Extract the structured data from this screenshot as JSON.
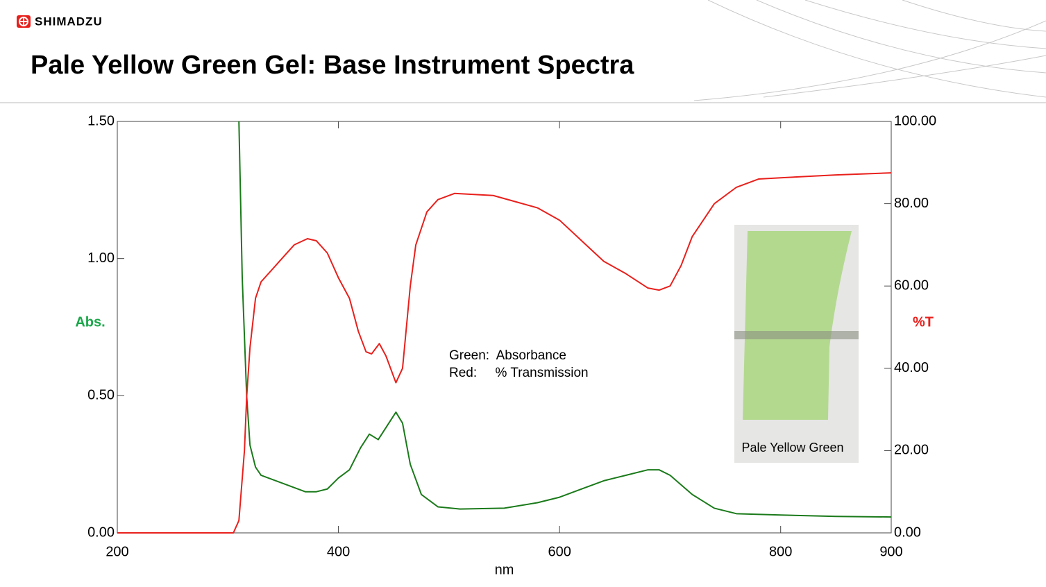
{
  "header": {
    "brand": "SHIMADZU"
  },
  "chart_data": {
    "type": "line",
    "title": "Pale Yellow Green Gel: Base Instrument Spectra",
    "xlabel": "nm",
    "ylabel": "Abs.",
    "y2label": "%T",
    "annotations": [
      "Green:  Absorbance",
      "Red:     % Transmission"
    ],
    "inset_label": "Pale Yellow Green",
    "xlim": [
      200,
      900
    ],
    "xticks": [
      200,
      400,
      600,
      800,
      900
    ],
    "ylim": [
      0,
      1.5
    ],
    "yticks": [
      {
        "value": 0,
        "label": "0.00"
      },
      {
        "value": 0.5,
        "label": "0.50"
      },
      {
        "value": 1,
        "label": "1.00"
      },
      {
        "value": 1.5,
        "label": "1.50"
      }
    ],
    "y2lim": [
      0,
      100
    ],
    "y2ticks": [
      {
        "value": 0,
        "label": "0.00"
      },
      {
        "value": 20,
        "label": "20.00"
      },
      {
        "value": 40,
        "label": "40.00"
      },
      {
        "value": 60,
        "label": "60.00"
      },
      {
        "value": 80,
        "label": "80.00"
      },
      {
        "value": 100,
        "label": "100.00"
      }
    ],
    "series": [
      {
        "name": "Absorbance",
        "color": "#1a7a1a",
        "x": [
          310,
          313,
          317,
          320,
          325,
          330,
          350,
          370,
          380,
          390,
          400,
          410,
          420,
          428,
          436,
          444,
          452,
          458,
          465,
          475,
          490,
          510,
          550,
          580,
          600,
          620,
          640,
          660,
          680,
          690,
          700,
          720,
          740,
          760,
          800,
          850,
          900
        ],
        "values": [
          1.5,
          0.93,
          0.5,
          0.32,
          0.24,
          0.21,
          0.18,
          0.15,
          0.15,
          0.16,
          0.2,
          0.23,
          0.31,
          0.36,
          0.34,
          0.39,
          0.44,
          0.4,
          0.25,
          0.14,
          0.095,
          0.087,
          0.09,
          0.11,
          0.13,
          0.16,
          0.19,
          0.21,
          0.23,
          0.23,
          0.21,
          0.14,
          0.09,
          0.07,
          0.065,
          0.06,
          0.058
        ]
      },
      {
        "name": "% Transmission",
        "color": "#e8201c",
        "axis": "y2",
        "x": [
          200,
          300,
          305,
          310,
          315,
          317,
          320,
          325,
          330,
          340,
          350,
          360,
          372,
          380,
          390,
          400,
          410,
          418,
          425,
          430,
          437,
          443,
          452,
          458,
          465,
          470,
          480,
          490,
          505,
          540,
          560,
          580,
          600,
          620,
          640,
          660,
          680,
          690,
          700,
          710,
          720,
          740,
          760,
          780,
          800,
          850,
          900
        ],
        "values": [
          0,
          0,
          0,
          3,
          20,
          33,
          45,
          57,
          61,
          64,
          67,
          70,
          71.5,
          71,
          68,
          62,
          57,
          49,
          44,
          43.5,
          46,
          43,
          36.5,
          40,
          60,
          70,
          78,
          81,
          82.5,
          82,
          80.5,
          79,
          76,
          71,
          66,
          63,
          59.5,
          59,
          60,
          65,
          72,
          80,
          84,
          86,
          86.3,
          87,
          87.5
        ]
      }
    ]
  }
}
